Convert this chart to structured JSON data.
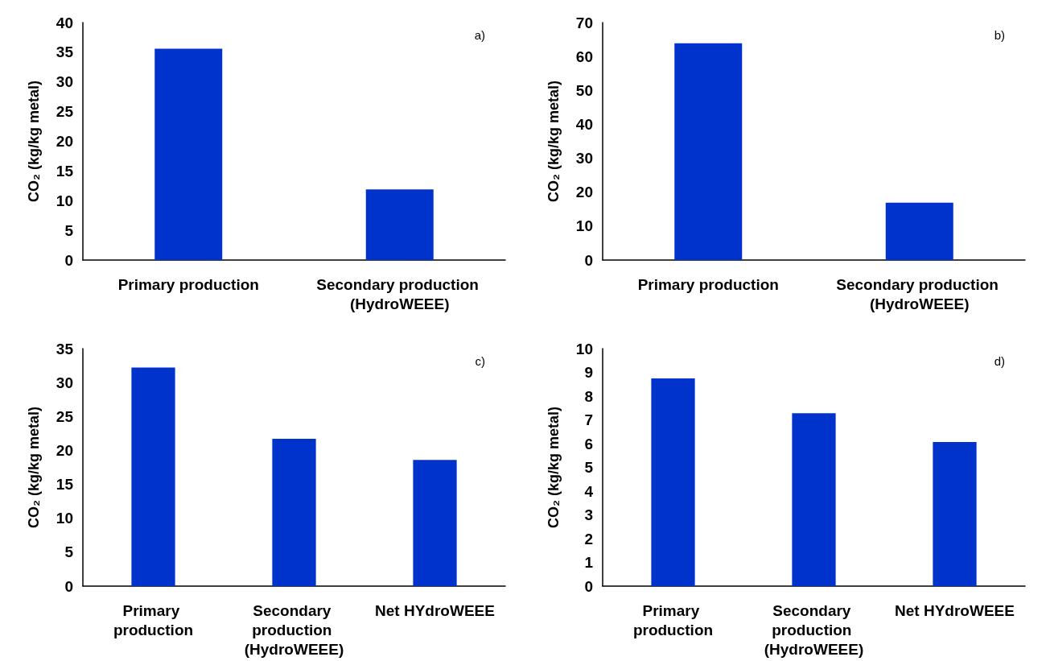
{
  "chart_data": [
    {
      "type": "bar",
      "ylabel": "CO₂ (kg/kg metal)",
      "annotations": [
        "a)"
      ],
      "categories": [
        "Primary production",
        "Secondary production (HydroWEEE)"
      ],
      "values": [
        35.6,
        11.9
      ],
      "color": "#0033cc",
      "ylim": [
        0,
        40
      ],
      "yticks": [
        0,
        5,
        10,
        15,
        20,
        25,
        30,
        35,
        40
      ],
      "grid": false
    },
    {
      "type": "bar",
      "ylabel": "CO₂ (kg/kg metal)",
      "annotations": [
        "b)"
      ],
      "categories": [
        "Primary production",
        "Secondary production (HydroWEEE)"
      ],
      "values": [
        63.9,
        16.9
      ],
      "color": "#0033cc",
      "ylim": [
        0,
        70
      ],
      "yticks": [
        0,
        10,
        20,
        30,
        40,
        50,
        60,
        70
      ],
      "grid": false
    },
    {
      "type": "bar",
      "ylabel": "CO₂ (kg/kg metal)",
      "annotations": [
        "c)"
      ],
      "categories": [
        "Primary production",
        "Secondary production (HydroWEEE)",
        "Net HYdroWEEE"
      ],
      "values": [
        32.2,
        21.7,
        18.6
      ],
      "color": "#0033cc",
      "ylim": [
        0,
        35
      ],
      "yticks": [
        0,
        5,
        10,
        15,
        20,
        25,
        30,
        35
      ],
      "grid": false
    },
    {
      "type": "bar",
      "ylabel": "CO₂ (kg/kg metal)",
      "annotations": [
        "d)"
      ],
      "categories": [
        "Primary production",
        "Secondary production (HydroWEEE)",
        "Net HYdroWEEE"
      ],
      "values": [
        8.75,
        7.28,
        6.07
      ],
      "color": "#0033cc",
      "ylim": [
        0,
        10
      ],
      "yticks": [
        0,
        1,
        2,
        3,
        4,
        5,
        6,
        7,
        8,
        9,
        10
      ],
      "grid": false
    }
  ]
}
